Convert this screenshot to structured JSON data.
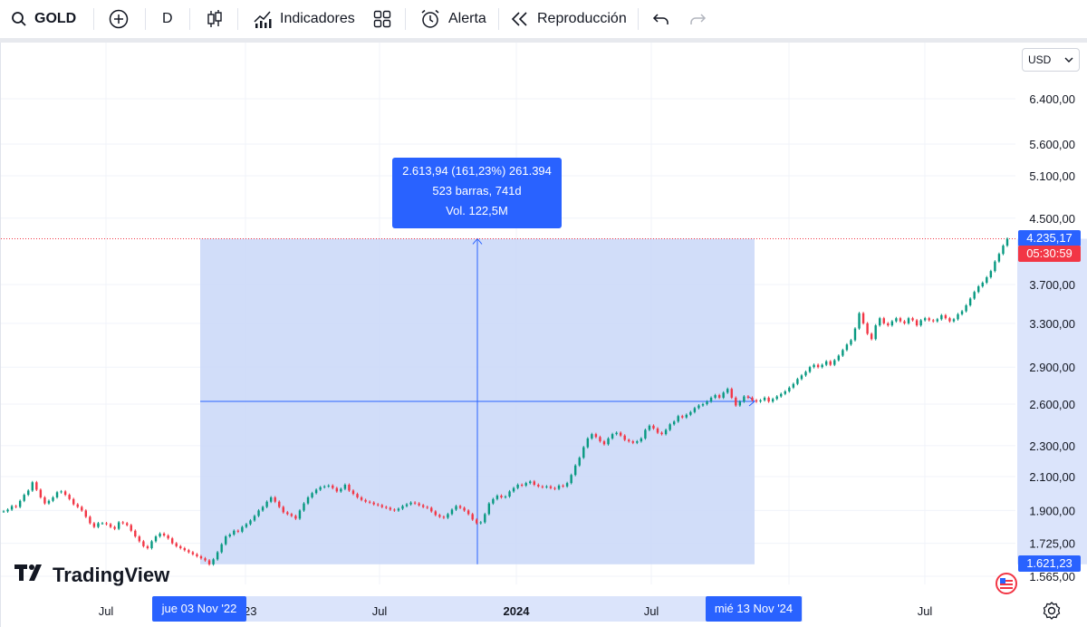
{
  "toolbar": {
    "symbol": "GOLD",
    "interval": "D",
    "indicators_label": "Indicadores",
    "alert_label": "Alerta",
    "replay_label": "Reproducción"
  },
  "currency_select": {
    "value": "USD"
  },
  "measure": {
    "line1": "2.613,94 (161,23%) 261.394",
    "line2": "523 barras, 741d",
    "line3": "Vol. 122,5M"
  },
  "price_axis": {
    "ticks": [
      "6.400,00",
      "5.600,00",
      "5.100,00",
      "4.500,00",
      "3.700,00",
      "3.300,00",
      "2.900,00",
      "2.600,00",
      "2.300,00",
      "2.100,00",
      "1.900,00",
      "1.725,00",
      "1.565,00"
    ],
    "last_price": "4.235,17",
    "countdown": "05:30:59",
    "range_low": "1.621,23"
  },
  "time_axis": {
    "labels": [
      "Jul",
      "'23",
      "Jul",
      "2024",
      "Jul",
      "Jul"
    ],
    "start_date": "jue 03 Nov '22",
    "end_date": "mié 13 Nov '24"
  },
  "brand": {
    "name": "TradingView"
  },
  "colors": {
    "up": "#089981",
    "down": "#f23645",
    "accent": "#2962ff",
    "range_fill": "#c9d7f8",
    "last_price_line": "#f23645"
  },
  "chart_data": {
    "type": "line",
    "title": "",
    "series": [
      {
        "values": [
          1895,
          1905,
          1925,
          1920,
          1955,
          1990,
          2015,
          2065,
          2020,
          1975,
          1940,
          1955,
          1975,
          2005,
          2010,
          1990,
          1965,
          1935,
          1920,
          1900,
          1865,
          1830,
          1810,
          1830,
          1830,
          1825,
          1810,
          1800,
          1835,
          1830,
          1820,
          1790,
          1760,
          1735,
          1710,
          1700,
          1735,
          1760,
          1775,
          1765,
          1750,
          1725,
          1710,
          1700,
          1690,
          1680,
          1670,
          1660,
          1650,
          1640,
          1621,
          1645,
          1680,
          1720,
          1760,
          1770,
          1790,
          1785,
          1810,
          1825,
          1845,
          1870,
          1900,
          1920,
          1950,
          1975,
          1950,
          1920,
          1890,
          1880,
          1870,
          1855,
          1900,
          1940,
          1975,
          2000,
          2020,
          2035,
          2040,
          2045,
          2030,
          2010,
          2025,
          2050,
          2015,
          1995,
          1975,
          1960,
          1950,
          1945,
          1935,
          1930,
          1920,
          1915,
          1905,
          1900,
          1910,
          1925,
          1935,
          1945,
          1940,
          1930,
          1920,
          1915,
          1895,
          1875,
          1865,
          1860,
          1880,
          1905,
          1925,
          1915,
          1900,
          1880,
          1850,
          1830,
          1835,
          1880,
          1940,
          1965,
          1985,
          1975,
          1980,
          2010,
          2030,
          2050,
          2045,
          2060,
          2070,
          2050,
          2040,
          2035,
          2040,
          2030,
          2025,
          2045,
          2040,
          2060,
          2110,
          2170,
          2220,
          2290,
          2350,
          2380,
          2360,
          2330,
          2310,
          2350,
          2380,
          2390,
          2370,
          2340,
          2330,
          2320,
          2330,
          2350,
          2410,
          2440,
          2420,
          2390,
          2380,
          2410,
          2450,
          2470,
          2510,
          2500,
          2520,
          2540,
          2570,
          2590,
          2600,
          2620,
          2650,
          2670,
          2650,
          2690,
          2720,
          2650,
          2590,
          2620,
          2660,
          2650,
          2630,
          2620,
          2630,
          2650,
          2620,
          2640,
          2660,
          2680,
          2700,
          2730,
          2760,
          2800,
          2830,
          2860,
          2900,
          2920,
          2900,
          2920,
          2950,
          2920,
          2960,
          3000,
          3050,
          3100,
          3140,
          3250,
          3400,
          3300,
          3200,
          3150,
          3280,
          3350,
          3300,
          3280,
          3320,
          3350,
          3320,
          3300,
          3350,
          3330,
          3280,
          3330,
          3350,
          3330,
          3320,
          3340,
          3380,
          3350,
          3320,
          3340,
          3390,
          3420,
          3480,
          3550,
          3620,
          3680,
          3720,
          3780,
          3850,
          3960,
          4050,
          4150,
          4235
        ]
      }
    ],
    "y_axis": {
      "scale": "log",
      "range": [
        1480,
        7200
      ],
      "ticks": [
        6400,
        5600,
        5100,
        4500,
        3700,
        3300,
        2900,
        2600,
        2300,
        2100,
        1900,
        1725,
        1565
      ]
    },
    "x_axis": {
      "labels": [
        "Jul",
        "'23",
        "Jul",
        "2024",
        "Jul",
        "Jul"
      ],
      "range_start": "jue 03 Nov '22",
      "range_end": "mié 13 Nov '24"
    },
    "measurement": {
      "change": "2.613,94",
      "percent": "161,23%",
      "ticks": "261.394",
      "bars": 523,
      "days": 741,
      "volume": "122,5M",
      "low": 1621.23,
      "high": 4235.17
    },
    "last_price": 4235.17,
    "grid": true
  }
}
